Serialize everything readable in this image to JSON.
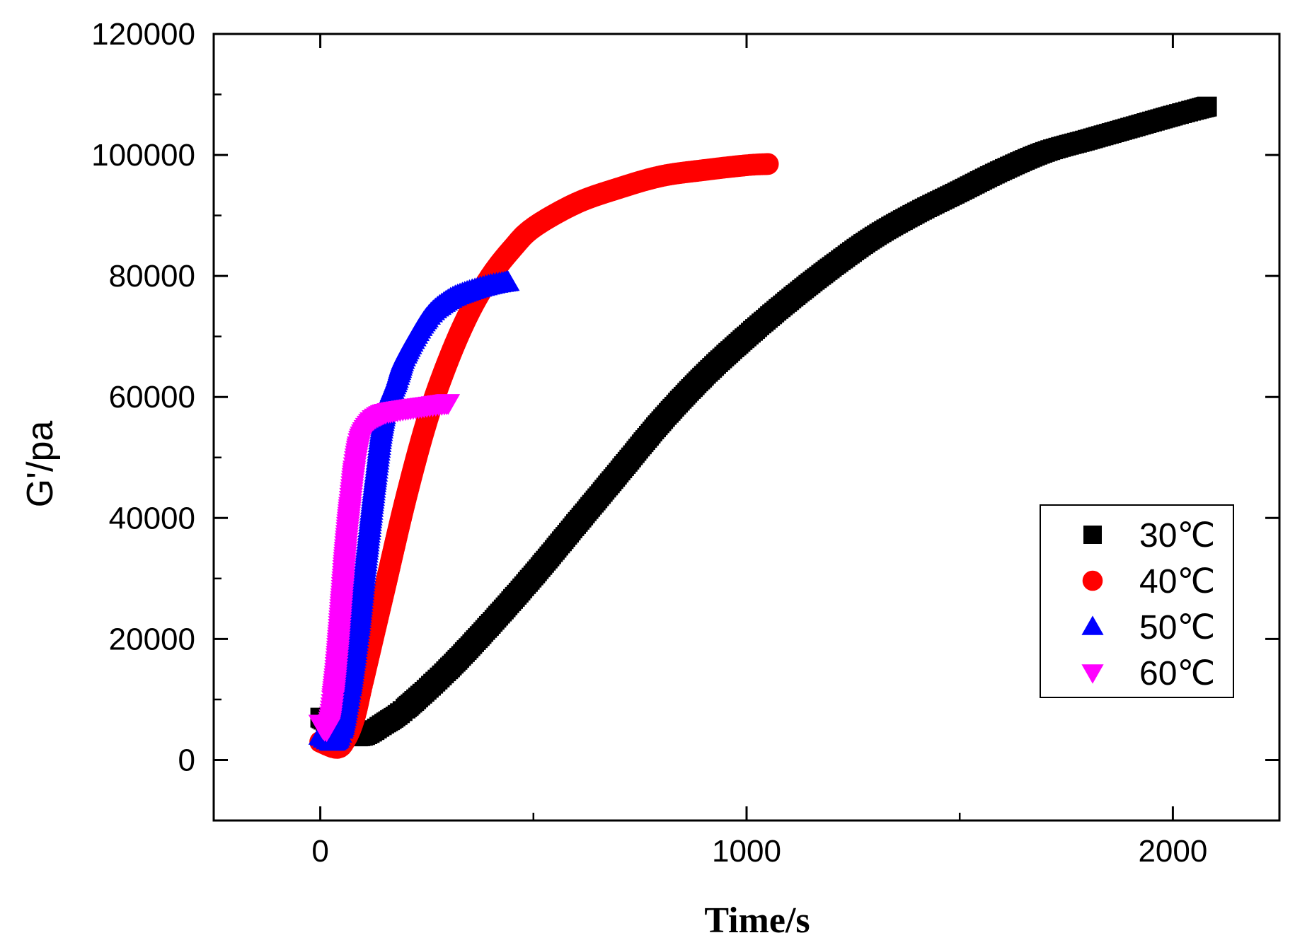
{
  "chart_data": {
    "type": "scatter",
    "xlabel": "Time/s",
    "ylabel": "G'/pa",
    "xlim": [
      -250,
      2250
    ],
    "ylim": [
      -10000,
      120000
    ],
    "x_ticks": [
      0,
      1000,
      2000
    ],
    "x_tick_labels": [
      "0",
      "1000",
      "2000"
    ],
    "y_ticks": [
      0,
      20000,
      40000,
      60000,
      80000,
      100000,
      120000
    ],
    "y_tick_labels": [
      "0",
      "20000",
      "40000",
      "60000",
      "80000",
      "100000",
      "120000"
    ],
    "grid": false,
    "legend_position": "bottom-right",
    "series": [
      {
        "name": "30℃",
        "marker": "square",
        "color": "#000000",
        "x": [
          0,
          60,
          100,
          150,
          200,
          300,
          400,
          500,
          600,
          700,
          800,
          900,
          1000,
          1100,
          1200,
          1300,
          1400,
          1500,
          1600,
          1700,
          1800,
          1900,
          2000,
          2080
        ],
        "y": [
          7000,
          4500,
          4000,
          6000,
          8500,
          15000,
          22500,
          30500,
          39000,
          47500,
          56000,
          63500,
          70000,
          76000,
          81500,
          86500,
          90500,
          94000,
          97500,
          100500,
          102500,
          104500,
          106500,
          108000
        ]
      },
      {
        "name": "40℃",
        "marker": "circle",
        "color": "#ff0000",
        "x": [
          0,
          40,
          60,
          80,
          100,
          150,
          200,
          250,
          300,
          350,
          400,
          450,
          500,
          600,
          700,
          800,
          900,
          1000,
          1050
        ],
        "y": [
          3000,
          2000,
          3500,
          7000,
          13000,
          28000,
          43000,
          56000,
          66000,
          74000,
          80000,
          84500,
          88000,
          92000,
          94500,
          96500,
          97500,
          98300,
          98500
        ]
      },
      {
        "name": "50℃",
        "marker": "triangle-up",
        "color": "#0000ff",
        "x": [
          0,
          30,
          50,
          70,
          90,
          110,
          130,
          150,
          180,
          200,
          250,
          300,
          350,
          400,
          440
        ],
        "y": [
          4000,
          3000,
          5000,
          12000,
          22000,
          35000,
          47000,
          57000,
          63000,
          67000,
          73000,
          76000,
          77500,
          78500,
          79000
        ]
      },
      {
        "name": "60℃",
        "marker": "triangle-down",
        "color": "#ff00ff",
        "x": [
          0,
          10,
          20,
          30,
          40,
          50,
          60,
          70,
          80,
          90,
          100,
          120,
          140,
          160,
          200,
          250,
          300
        ],
        "y": [
          6000,
          5000,
          5500,
          10000,
          17000,
          26000,
          35000,
          42000,
          48000,
          52000,
          54000,
          56000,
          57000,
          57500,
          58000,
          58500,
          59000
        ]
      }
    ]
  }
}
